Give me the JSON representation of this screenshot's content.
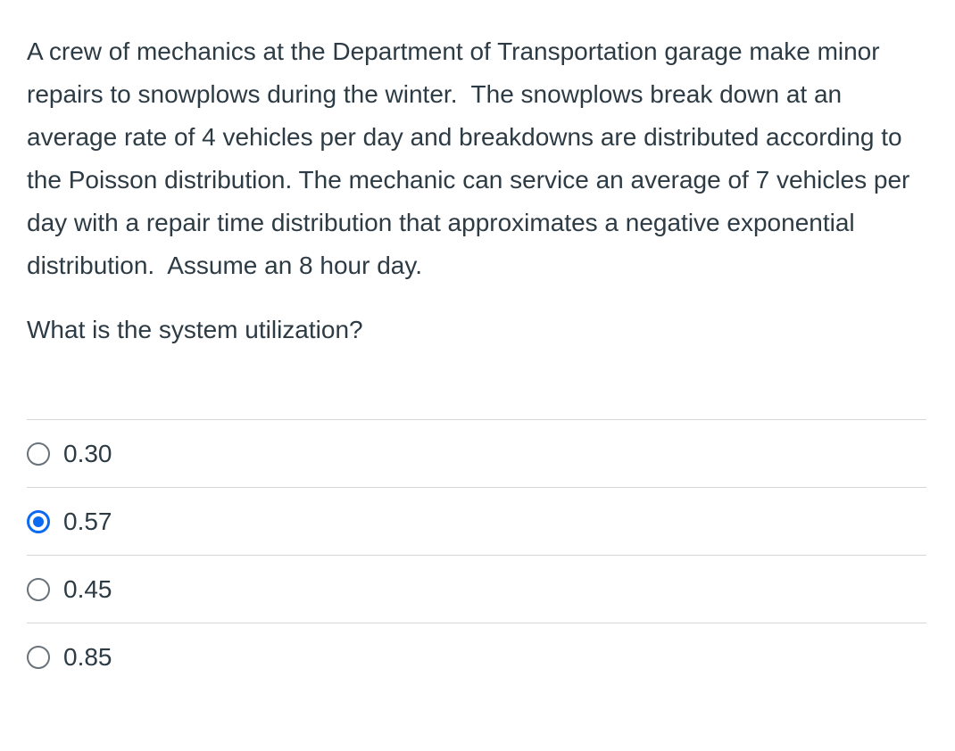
{
  "question": {
    "paragraphs": [
      "A crew of mechanics at the Department of Transportation garage make minor repairs to snowplows during the winter.  The snowplows break down at an average rate of 4 vehicles per day and breakdowns are distributed according to the Poisson distribution. The mechanic can service an average of 7 vehicles per day with a repair time distribution that approximates a negative exponential distribution.  Assume an 8 hour day.",
      "What is the system utilization?"
    ]
  },
  "options": [
    {
      "label": "0.30",
      "selected": false
    },
    {
      "label": "0.57",
      "selected": true
    },
    {
      "label": "0.45",
      "selected": false
    },
    {
      "label": "0.85",
      "selected": false
    }
  ],
  "colors": {
    "text": "#2D3B45",
    "divider": "#d6d6d6",
    "radio_border": "#6A737B",
    "selected_accent": "#0B6BF0",
    "background": "#ffffff"
  }
}
